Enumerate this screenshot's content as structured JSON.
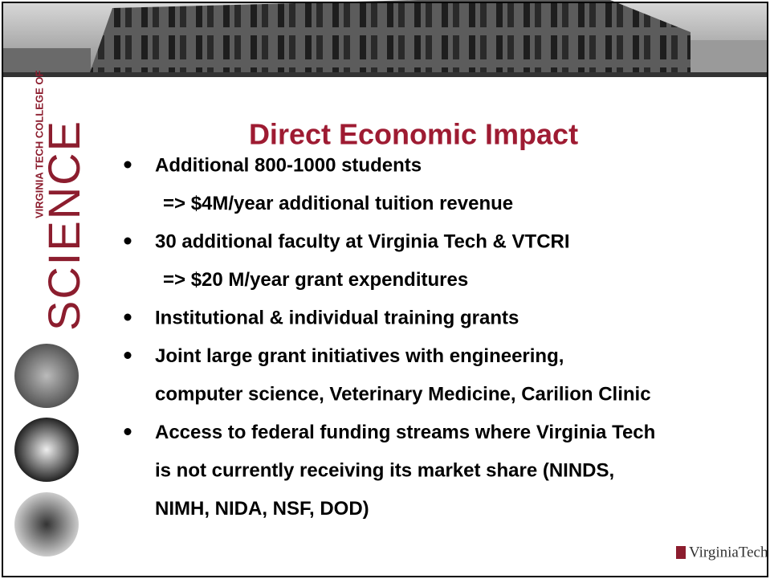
{
  "title": "Direct Economic Impact",
  "sidebar": {
    "line1": "VIRGINIA TECH COLLEGE OF",
    "line2": "SCIENCE"
  },
  "bullets": [
    {
      "lines": [
        "Additional 800-1000 students"
      ],
      "sub": "=> $4M/year additional tuition revenue"
    },
    {
      "lines": [
        "30 additional faculty at Virginia Tech & VTCRI"
      ],
      "sub": "=> $20 M/year grant expenditures"
    },
    {
      "lines": [
        "Institutional & individual training grants"
      ]
    },
    {
      "lines": [
        "Joint large grant initiatives with engineering,",
        "computer science, Veterinary Medicine, Carilion Clinic"
      ]
    },
    {
      "lines": [
        "Access to federal funding streams where Virginia Tech",
        "is not currently receiving its market share (NINDS,",
        "NIMH, NIDA, NSF, DOD)"
      ]
    }
  ],
  "logo": "VirginiaTech"
}
